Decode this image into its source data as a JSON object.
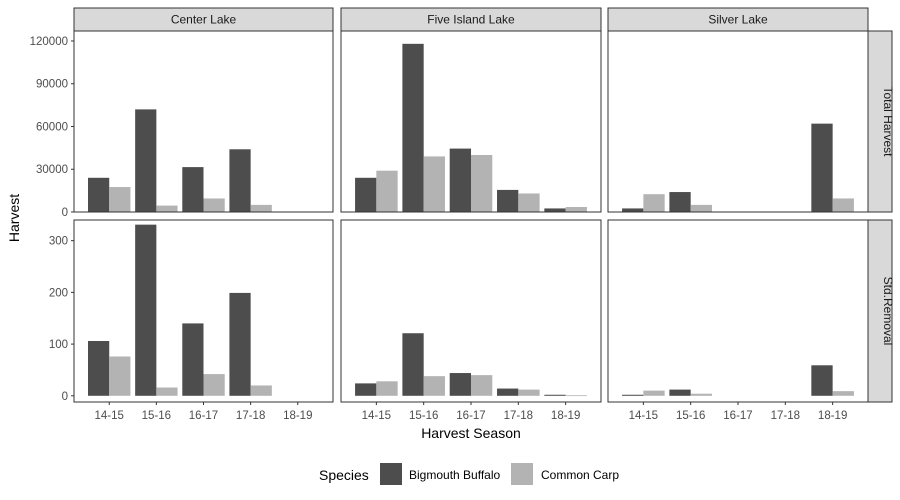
{
  "chart_data": {
    "type": "bar",
    "facet_columns": [
      "Center Lake",
      "Five Island Lake",
      "Silver Lake"
    ],
    "facet_rows": [
      "Total Harvest",
      "Std.Removal"
    ],
    "categories": [
      "14-15",
      "15-16",
      "16-17",
      "17-18",
      "18-19"
    ],
    "xlabel": "Harvest Season",
    "ylabel": "Harvest",
    "legend": {
      "title": "Species",
      "position": "bottom",
      "entries": [
        {
          "name": "Bigmouth Buffalo",
          "color": "#4d4d4d"
        },
        {
          "name": "Common Carp",
          "color": "#b3b3b3"
        }
      ]
    },
    "rows": [
      {
        "facet": "Total Harvest",
        "ylim": [
          0,
          127000
        ],
        "yticks": [
          0,
          30000,
          60000,
          90000,
          120000
        ],
        "yticklabels": [
          "0",
          "30000",
          "60000",
          "90000",
          "120000"
        ],
        "panels": [
          {
            "lake": "Center Lake",
            "series": [
              {
                "name": "Bigmouth Buffalo",
                "values": [
                  24000,
                  72000,
                  31500,
                  44000,
                  null
                ]
              },
              {
                "name": "Common Carp",
                "values": [
                  17500,
                  4500,
                  9500,
                  5000,
                  null
                ]
              }
            ]
          },
          {
            "lake": "Five Island Lake",
            "series": [
              {
                "name": "Bigmouth Buffalo",
                "values": [
                  24000,
                  118000,
                  44500,
                  15500,
                  2500
                ]
              },
              {
                "name": "Common Carp",
                "values": [
                  29000,
                  39000,
                  40000,
                  13000,
                  3500
                ]
              }
            ]
          },
          {
            "lake": "Silver Lake",
            "series": [
              {
                "name": "Bigmouth Buffalo",
                "values": [
                  2500,
                  14000,
                  null,
                  null,
                  62000
                ]
              },
              {
                "name": "Common Carp",
                "values": [
                  12500,
                  5000,
                  null,
                  null,
                  9500
                ]
              }
            ]
          }
        ]
      },
      {
        "facet": "Std.Removal",
        "ylim": [
          -12,
          340
        ],
        "yticks": [
          0,
          100,
          200,
          300
        ],
        "yticklabels": [
          "0",
          "100",
          "200",
          "300"
        ],
        "panels": [
          {
            "lake": "Center Lake",
            "series": [
              {
                "name": "Bigmouth Buffalo",
                "values": [
                  106,
                  331,
                  140,
                  199,
                  null
                ]
              },
              {
                "name": "Common Carp",
                "values": [
                  76,
                  16,
                  42,
                  20,
                  null
                ]
              }
            ]
          },
          {
            "lake": "Five Island Lake",
            "series": [
              {
                "name": "Bigmouth Buffalo",
                "values": [
                  24,
                  121,
                  44,
                  14,
                  2
                ]
              },
              {
                "name": "Common Carp",
                "values": [
                  28,
                  38,
                  40,
                  12,
                  1
                ]
              }
            ]
          },
          {
            "lake": "Silver Lake",
            "series": [
              {
                "name": "Bigmouth Buffalo",
                "values": [
                  2,
                  12,
                  null,
                  null,
                  59
                ]
              },
              {
                "name": "Common Carp",
                "values": [
                  10,
                  4,
                  null,
                  null,
                  9
                ]
              }
            ]
          }
        ]
      }
    ],
    "grid": false
  }
}
